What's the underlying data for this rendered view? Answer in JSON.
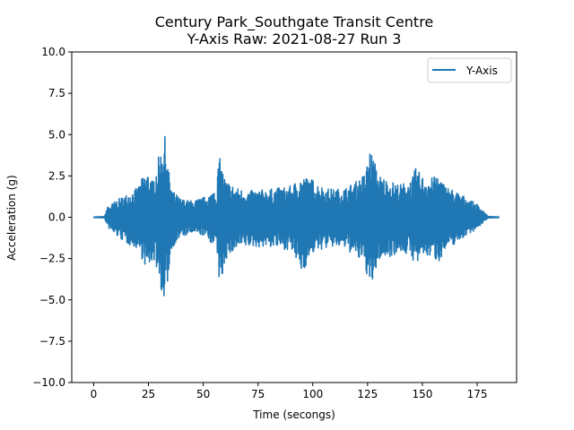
{
  "chart_data": {
    "type": "line",
    "title": "Century Park_Southgate Transit Centre",
    "subtitle": "Y-Axis Raw: 2021-08-27 Run 3",
    "xlabel": "Time (secongs)",
    "ylabel": "Acceleration (g)",
    "xlim": [
      -10,
      193
    ],
    "ylim": [
      -10,
      10
    ],
    "xticks": [
      0,
      25,
      50,
      75,
      100,
      125,
      150,
      175
    ],
    "yticks": [
      -10.0,
      -7.5,
      -5.0,
      -2.5,
      0.0,
      2.5,
      5.0,
      7.5,
      10.0
    ],
    "xtick_labels": [
      "0",
      "25",
      "50",
      "75",
      "100",
      "125",
      "150",
      "175"
    ],
    "ytick_labels": [
      "−10.0",
      "−7.5",
      "−5.0",
      "−2.5",
      "0.0",
      "2.5",
      "5.0",
      "7.5",
      "10.0"
    ],
    "grid": false,
    "legend": {
      "position": "top-right",
      "entries": [
        "Y-Axis"
      ]
    },
    "series": [
      {
        "name": "Y-Axis",
        "color": "#1f77b4",
        "x": [
          0,
          3,
          5,
          6,
          8,
          10,
          15,
          20,
          23,
          25,
          27,
          29,
          31,
          32,
          33,
          34,
          36,
          40,
          45,
          50,
          54,
          55,
          56,
          57,
          58,
          60,
          65,
          70,
          80,
          90,
          95,
          100,
          105,
          110,
          115,
          120,
          124,
          126,
          128,
          130,
          135,
          140,
          145,
          147,
          150,
          155,
          157,
          160,
          165,
          170,
          175,
          178,
          180,
          185
        ],
        "upper": [
          0.02,
          0.03,
          0.05,
          0.6,
          0.8,
          1.0,
          1.4,
          1.8,
          2.6,
          2.8,
          2.2,
          3.4,
          4.2,
          5.2,
          4.6,
          3.0,
          1.6,
          1.1,
          1.0,
          1.2,
          1.5,
          2.0,
          1.2,
          3.8,
          3.4,
          2.3,
          1.8,
          1.6,
          1.7,
          1.9,
          2.5,
          2.3,
          1.8,
          1.7,
          1.8,
          2.2,
          2.7,
          4.2,
          3.5,
          2.6,
          2.2,
          2.0,
          2.3,
          3.0,
          2.5,
          2.4,
          2.7,
          2.0,
          1.6,
          1.2,
          0.8,
          0.4,
          0.05,
          0.02
        ],
        "lower": [
          -0.02,
          -0.03,
          -0.05,
          -0.5,
          -0.9,
          -1.1,
          -1.6,
          -1.9,
          -2.8,
          -3.4,
          -2.5,
          -3.2,
          -4.5,
          -6.0,
          -5.0,
          -3.6,
          -1.8,
          -1.2,
          -1.0,
          -1.1,
          -1.6,
          -2.2,
          -1.4,
          -3.6,
          -4.4,
          -2.6,
          -2.0,
          -1.8,
          -1.8,
          -2.0,
          -3.4,
          -2.2,
          -1.9,
          -1.8,
          -1.9,
          -2.5,
          -3.0,
          -4.6,
          -3.8,
          -2.6,
          -2.4,
          -2.1,
          -2.4,
          -3.0,
          -2.4,
          -2.4,
          -2.8,
          -2.1,
          -1.6,
          -1.1,
          -0.7,
          -0.3,
          -0.05,
          -0.02
        ]
      }
    ]
  }
}
